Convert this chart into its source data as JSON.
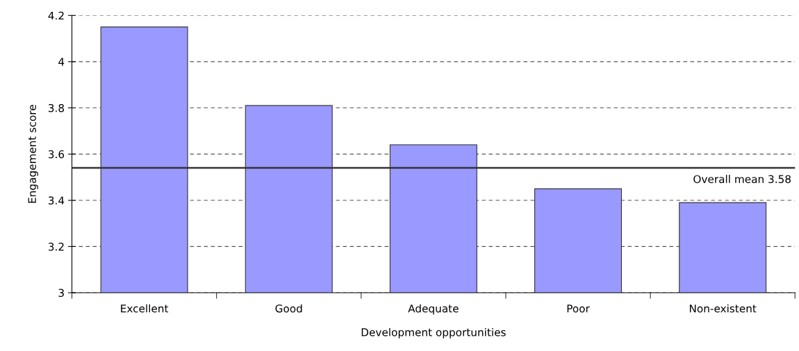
{
  "chart_data": {
    "type": "bar",
    "xlabel": "Development opportunities",
    "ylabel": "Engagement score",
    "categories": [
      "Excellent",
      "Good",
      "Adequate",
      "Poor",
      "Non-existent"
    ],
    "values": [
      4.15,
      3.81,
      3.64,
      3.45,
      3.39
    ],
    "color": "#9999ff",
    "ylim": [
      3,
      4.2
    ],
    "yticks": [
      3,
      3.2,
      3.4,
      3.6,
      3.8,
      4,
      4.2
    ],
    "grid": "y",
    "ref_lines": [
      {
        "axis": "y",
        "value": 3.54,
        "label": "Overall mean 3.58",
        "color": "#333333",
        "line_style": "solid"
      }
    ]
  }
}
